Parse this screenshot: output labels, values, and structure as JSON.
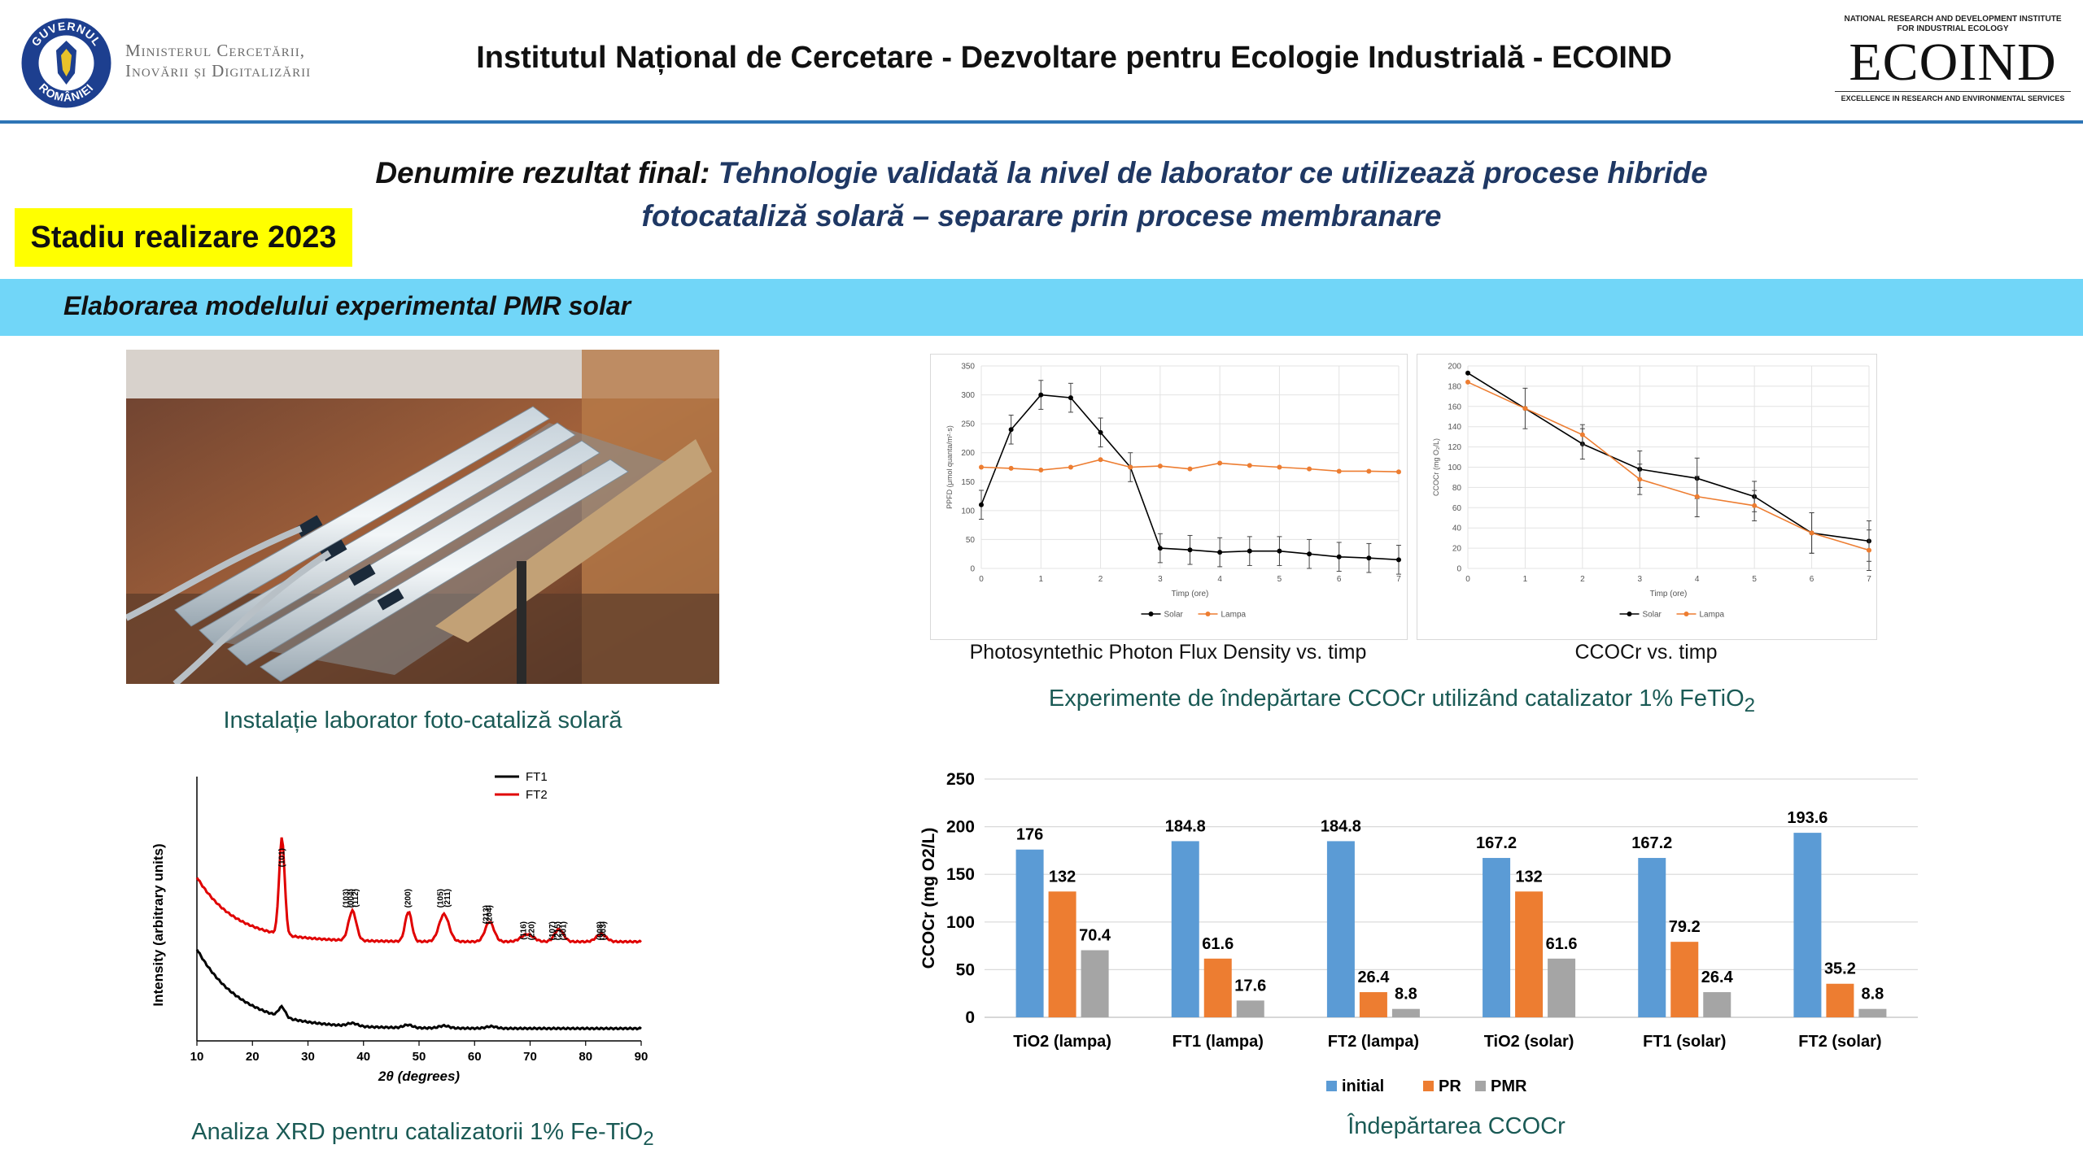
{
  "header": {
    "ministry_line1": "Ministerul Cercetării,",
    "ministry_line2": "Inovării și Digitalizării",
    "emblem_top": "GUVERNUL",
    "emblem_bottom": "ROMÂNIEI",
    "institute_title": "Institutul Național de Cercetare - Dezvoltare pentru Ecologie Industrială - ECOIND",
    "ecoind_top_line1": "NATIONAL RESEARCH AND DEVELOPMENT INSTITUTE",
    "ecoind_top_line2": "FOR INDUSTRIAL ECOLOGY",
    "ecoind_word": "ECOIND",
    "ecoind_tagline": "EXCELLENCE IN RESEARCH AND ENVIRONMENTAL SERVICES",
    "accent_color": "#2e75b6"
  },
  "result": {
    "prefix": "Denumire rezultat final:",
    "line1": "Tehnologie validată la nivel de laborator ce utilizează procese hibride",
    "line2": "fotocataliză solară – separare prin procese membranare"
  },
  "stage_badge": "Stadiu realizare 2023",
  "section_title": "Elaborarea modelului experimental PMR solar",
  "captions": {
    "lab_photo": "Instalație laborator foto-cataliză solară",
    "pfd_chart": "Photosyntethic Photon Flux Density vs. timp",
    "cod_chart": "CCOCr vs. timp",
    "experiments": "Experimente de îndepărtare CCOCr utilizând catalizator 1% FeTiO",
    "experiments_sub": "2",
    "xrd": "Analiza XRD pentru catalizatorii 1% Fe-TiO",
    "xrd_sub": "2",
    "bars": "Îndepărtarea CCOCr"
  },
  "chart_data": [
    {
      "id": "pfd",
      "type": "line",
      "xlabel": "Timp (ore)",
      "ylabel": "PPFD (μmol quanta/m²·s)",
      "xlim": [
        0,
        7
      ],
      "ylim": [
        0,
        350
      ],
      "xticks": [
        0,
        1,
        2,
        3,
        4,
        5,
        6,
        7
      ],
      "yticks": [
        0,
        50,
        100,
        150,
        200,
        250,
        300,
        350
      ],
      "grid": true,
      "legend": "bottom",
      "series": [
        {
          "name": "Solar",
          "color": "#000000",
          "x": [
            0,
            0.5,
            1,
            1.5,
            2,
            2.5,
            3,
            3.5,
            4,
            4.5,
            5,
            5.5,
            6,
            6.5,
            7
          ],
          "y": [
            110,
            240,
            300,
            295,
            235,
            175,
            35,
            32,
            28,
            30,
            30,
            25,
            20,
            18,
            15
          ],
          "err": [
            25,
            25,
            25,
            25,
            25,
            25,
            25,
            25,
            25,
            25,
            25,
            25,
            25,
            25,
            25
          ]
        },
        {
          "name": "Lampa",
          "color": "#ed7d31",
          "x": [
            0,
            0.5,
            1,
            1.5,
            2,
            2.5,
            3,
            3.5,
            4,
            4.5,
            5,
            5.5,
            6,
            6.5,
            7
          ],
          "y": [
            175,
            173,
            170,
            175,
            188,
            175,
            177,
            172,
            182,
            178,
            175,
            172,
            168,
            168,
            167
          ],
          "err": [
            0,
            0,
            0,
            0,
            0,
            0,
            0,
            0,
            0,
            0,
            0,
            0,
            0,
            0,
            0
          ]
        }
      ]
    },
    {
      "id": "cod",
      "type": "line",
      "xlabel": "Timp (ore)",
      "ylabel": "CCOCr (mg O₂/L)",
      "xlim": [
        0,
        7
      ],
      "ylim": [
        0,
        200
      ],
      "xticks": [
        0,
        1,
        2,
        3,
        4,
        5,
        6,
        7
      ],
      "yticks": [
        0,
        20,
        40,
        60,
        80,
        100,
        120,
        140,
        160,
        180,
        200
      ],
      "grid": true,
      "legend": "bottom",
      "series": [
        {
          "name": "Solar",
          "color": "#000000",
          "x": [
            0,
            1,
            2,
            3,
            4,
            5,
            6,
            7
          ],
          "y": [
            193,
            158,
            123,
            98,
            89,
            71,
            35,
            27
          ],
          "err": [
            0,
            20,
            15,
            18,
            20,
            15,
            20,
            20
          ]
        },
        {
          "name": "Lampa",
          "color": "#ed7d31",
          "x": [
            0,
            1,
            2,
            3,
            4,
            5,
            6,
            7
          ],
          "y": [
            184,
            158,
            132,
            88,
            71,
            62,
            35,
            18
          ],
          "err": [
            0,
            0,
            10,
            15,
            20,
            15,
            20,
            20
          ]
        }
      ]
    },
    {
      "id": "xrd",
      "type": "line",
      "xlabel": "2θ (degrees)",
      "ylabel": "Intensity (arbitrary units)",
      "xlim": [
        10,
        90
      ],
      "xticks": [
        10,
        20,
        30,
        40,
        50,
        60,
        70,
        80,
        90
      ],
      "legend": "top-right",
      "series": [
        {
          "name": "FT1",
          "color": "#000000",
          "baseline": 0.05,
          "amp": 0.32,
          "decay": 8,
          "peaks": [
            [
              25.3,
              0.04,
              0.6
            ],
            [
              38,
              0.012,
              0.9
            ],
            [
              48,
              0.012,
              0.8
            ],
            [
              54.5,
              0.01,
              0.9
            ],
            [
              63,
              0.008,
              0.9
            ]
          ]
        },
        {
          "name": "FT2",
          "color": "#e00000",
          "baseline": 0.4,
          "amp": 0.26,
          "decay": 7,
          "peaks": [
            [
              25.3,
              0.39,
              0.5
            ],
            [
              38,
              0.12,
              0.7
            ],
            [
              48.1,
              0.12,
              0.6
            ],
            [
              54.5,
              0.11,
              0.9
            ],
            [
              62.7,
              0.08,
              0.8
            ],
            [
              69.5,
              0.03,
              1.1
            ],
            [
              75.2,
              0.05,
              0.8
            ],
            [
              82.8,
              0.03,
              0.9
            ]
          ]
        }
      ],
      "peak_labels": [
        {
          "x": 25.3,
          "text": "(101)"
        },
        {
          "x": 36.9,
          "text": "(103)"
        },
        {
          "x": 37.8,
          "text": "(004)"
        },
        {
          "x": 38.6,
          "text": "(112)"
        },
        {
          "x": 48.0,
          "text": "(200)"
        },
        {
          "x": 53.9,
          "text": "(105)"
        },
        {
          "x": 55.1,
          "text": "(211)"
        },
        {
          "x": 62.1,
          "text": "(213)"
        },
        {
          "x": 62.7,
          "text": "(204)"
        },
        {
          "x": 68.8,
          "text": "(116)"
        },
        {
          "x": 70.3,
          "text": "(220)"
        },
        {
          "x": 74.0,
          "text": "(107)"
        },
        {
          "x": 75.0,
          "text": "(215)"
        },
        {
          "x": 76.0,
          "text": "(301)"
        },
        {
          "x": 82.6,
          "text": "(008)"
        },
        {
          "x": 83.2,
          "text": "(303)"
        }
      ]
    },
    {
      "id": "bars",
      "type": "bar",
      "ylabel": "CCOCr (mg O2/L)",
      "ylim": [
        0,
        250
      ],
      "yticks": [
        0,
        50,
        100,
        150,
        200,
        250
      ],
      "grid": true,
      "legend": "bottom",
      "categories": [
        "TiO2 (lampa)",
        "FT1 (lampa)",
        "FT2 (lampa)",
        "TiO2 (solar)",
        "FT1 (solar)",
        "FT2 (solar)"
      ],
      "series": [
        {
          "name": "initial",
          "color": "#5b9bd5",
          "values": [
            176,
            184.8,
            184.8,
            167.2,
            167.2,
            193.6
          ]
        },
        {
          "name": "PR",
          "color": "#ed7d31",
          "values": [
            132,
            61.6,
            26.4,
            132,
            79.2,
            35.2
          ]
        },
        {
          "name": "PMR",
          "color": "#a5a5a5",
          "values": [
            70.4,
            17.6,
            8.8,
            61.6,
            26.4,
            8.8
          ]
        }
      ]
    }
  ]
}
